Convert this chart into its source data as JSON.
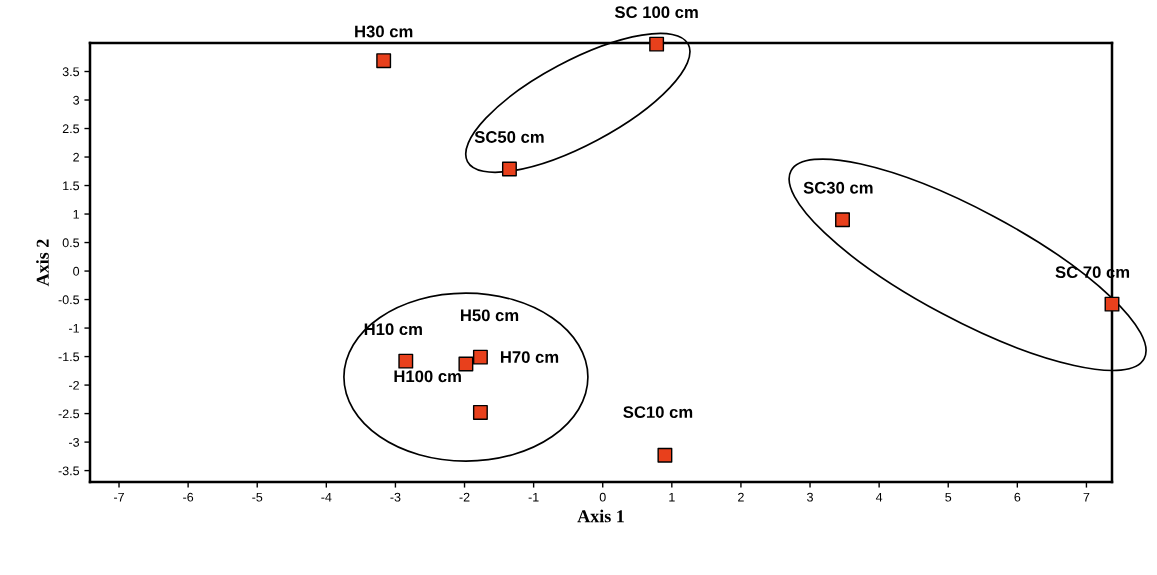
{
  "chart_data": {
    "type": "scatter",
    "xlabel": "Axis 1",
    "ylabel": "Axis 2",
    "x": [
      -3.17,
      0.78,
      -1.35,
      3.47,
      7.37,
      -2.85,
      -1.98,
      -1.77,
      -1.77,
      0.9
    ],
    "series": [
      {
        "color": "#e8401c",
        "values": [
          3.69,
          3.98,
          1.79,
          0.9,
          -0.58,
          -1.58,
          -1.63,
          -1.51,
          -2.48,
          -3.23
        ]
      }
    ],
    "marker": "square",
    "grid": false,
    "legend": false,
    "xlim": [
      -7.42,
      7.37
    ],
    "xticks": [
      -7,
      -6,
      -5,
      -4,
      -3,
      -2,
      -1,
      0,
      1,
      2,
      3,
      4,
      5,
      6,
      7
    ],
    "ylim": [
      -3.7,
      4.0
    ],
    "yticks": [
      -3.5,
      -3,
      -2.5,
      -2,
      -1.5,
      -1,
      -0.5,
      0,
      0.5,
      1,
      1.5,
      2,
      2.5,
      3,
      3.5
    ],
    "annotations": [
      {
        "text": "H30 cm",
        "x": -3.17,
        "y": 3.69
      },
      {
        "text": "SC 100 cm",
        "x": 0.78,
        "y": 3.98
      },
      {
        "text": "SC50 cm",
        "x": -1.35,
        "y": 1.79
      },
      {
        "text": "SC30 cm",
        "x": 3.47,
        "y": 0.9
      },
      {
        "text": "SC 70 cm",
        "x": 7.37,
        "y": -0.58
      },
      {
        "text": "H10 cm",
        "x": -2.85,
        "y": -1.58
      },
      {
        "text": "H50 cm",
        "x": -1.98,
        "y": -1.63
      },
      {
        "text": "H70 cm",
        "x": -1.77,
        "y": -1.51
      },
      {
        "text": "H100 cm",
        "x": -1.77,
        "y": -2.48
      },
      {
        "text": "SC10 cm",
        "x": 0.9,
        "y": -3.23
      }
    ]
  }
}
